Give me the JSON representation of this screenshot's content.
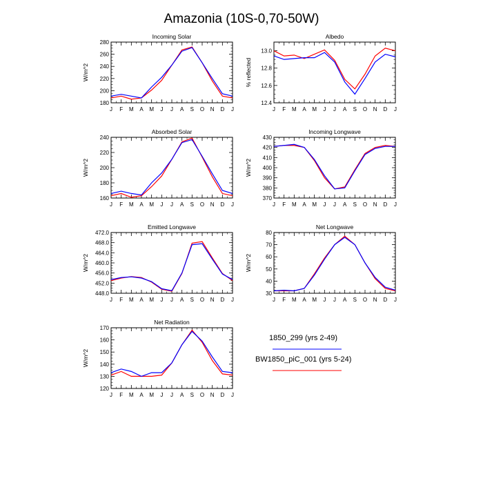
{
  "page": {
    "title": "Amazonia (10S-0,70-50W)"
  },
  "legend": {
    "entries": [
      {
        "name": "1850_299 (yrs 2-49)",
        "color": "#0000ff"
      },
      {
        "name": "BW1850_piC_001 (yrs 5-24)",
        "color": "#ff0000"
      }
    ]
  },
  "chart_data": [
    {
      "type": "line",
      "title": "Incoming Solar",
      "ylabel": "W/m^2",
      "categories": [
        "J",
        "F",
        "M",
        "A",
        "M",
        "J",
        "J",
        "A",
        "S",
        "O",
        "N",
        "D",
        "J"
      ],
      "ylim": [
        180,
        280
      ],
      "yticks": [
        180,
        200,
        220,
        240,
        260,
        280
      ],
      "ytick_labels": [
        "180",
        "200",
        "220",
        "240",
        "260",
        "280"
      ],
      "series": [
        {
          "name": "1850_299 (yrs 2-49)",
          "color": "#0000ff",
          "values": [
            191,
            194,
            191,
            188,
            206,
            222,
            242,
            265,
            271,
            246,
            220,
            195,
            191
          ]
        },
        {
          "name": "BW1850_piC_001 (yrs 5-24)",
          "color": "#ff0000",
          "values": [
            188,
            191,
            186,
            188,
            201,
            217,
            242,
            267,
            272,
            246,
            216,
            191,
            188
          ]
        }
      ]
    },
    {
      "type": "line",
      "title": "Albedo",
      "ylabel": "% reflected",
      "categories": [
        "J",
        "F",
        "M",
        "A",
        "M",
        "J",
        "J",
        "A",
        "S",
        "O",
        "N",
        "D",
        "J"
      ],
      "ylim": [
        12.4,
        13.1
      ],
      "yticks": [
        12.4,
        12.6,
        12.8,
        13.0
      ],
      "ytick_labels": [
        "12.4",
        "12.6",
        "12.8",
        "13.0"
      ],
      "series": [
        {
          "name": "1850_299 (yrs 2-49)",
          "color": "#0000ff",
          "values": [
            12.94,
            12.9,
            12.91,
            12.92,
            12.92,
            12.98,
            12.87,
            12.64,
            12.5,
            12.68,
            12.87,
            12.96,
            12.93
          ]
        },
        {
          "name": "BW1850_piC_001 (yrs 5-24)",
          "color": "#ff0000",
          "values": [
            13.0,
            12.94,
            12.95,
            12.91,
            12.96,
            13.01,
            12.89,
            12.67,
            12.56,
            12.73,
            12.94,
            13.03,
            13.0
          ]
        }
      ]
    },
    {
      "type": "line",
      "title": "Absorbed Solar",
      "ylabel": "W/m^2",
      "categories": [
        "J",
        "F",
        "M",
        "A",
        "M",
        "J",
        "J",
        "A",
        "S",
        "O",
        "N",
        "D",
        "J"
      ],
      "ylim": [
        160,
        240
      ],
      "yticks": [
        160,
        180,
        200,
        220,
        240
      ],
      "ytick_labels": [
        "160",
        "180",
        "200",
        "220",
        "240"
      ],
      "series": [
        {
          "name": "1850_299 (yrs 2-49)",
          "color": "#0000ff",
          "values": [
            166,
            169,
            166,
            164,
            180,
            193,
            211,
            233,
            237,
            215,
            192,
            170,
            166
          ]
        },
        {
          "name": "BW1850_piC_001 (yrs 5-24)",
          "color": "#ff0000",
          "values": [
            163,
            166,
            161,
            163,
            175,
            189,
            211,
            234,
            239,
            214,
            188,
            166,
            163
          ]
        }
      ]
    },
    {
      "type": "line",
      "title": "Incoming Longwave",
      "ylabel": "W/m^2",
      "categories": [
        "J",
        "F",
        "M",
        "A",
        "M",
        "J",
        "J",
        "A",
        "S",
        "O",
        "N",
        "D",
        "J"
      ],
      "ylim": [
        370,
        430
      ],
      "yticks": [
        370,
        380,
        390,
        400,
        410,
        420,
        430
      ],
      "ytick_labels": [
        "370",
        "380",
        "390",
        "400",
        "410",
        "420",
        "430"
      ],
      "series": [
        {
          "name": "1850_299 (yrs 2-49)",
          "color": "#0000ff",
          "values": [
            421,
            422,
            423,
            420,
            408,
            392,
            379,
            380,
            397,
            413,
            419,
            421,
            421
          ]
        },
        {
          "name": "BW1850_piC_001 (yrs 5-24)",
          "color": "#ff0000",
          "values": [
            421,
            422,
            422,
            420,
            407,
            390,
            379,
            381,
            398,
            414,
            420,
            422,
            421
          ]
        }
      ]
    },
    {
      "type": "line",
      "title": "Emitted Longwave",
      "ylabel": "W/m^2",
      "categories": [
        "J",
        "F",
        "M",
        "A",
        "M",
        "J",
        "J",
        "A",
        "S",
        "O",
        "N",
        "D",
        "J"
      ],
      "ylim": [
        448,
        472
      ],
      "yticks": [
        448,
        452,
        456,
        460,
        464,
        468,
        472
      ],
      "ytick_labels": [
        "448.0",
        "452.0",
        "456.0",
        "460.0",
        "464.0",
        "468.0",
        "472.0"
      ],
      "series": [
        {
          "name": "1850_299 (yrs 2-49)",
          "color": "#0000ff",
          "values": [
            453.4,
            454.2,
            454.5,
            454.0,
            452.6,
            449.8,
            449.0,
            456.0,
            467.2,
            467.6,
            461.5,
            455.6,
            453.4
          ]
        },
        {
          "name": "BW1850_piC_001 (yrs 5-24)",
          "color": "#ff0000",
          "values": [
            453.0,
            454.0,
            454.6,
            454.2,
            452.4,
            449.6,
            448.8,
            455.8,
            467.8,
            468.4,
            462.0,
            455.8,
            453.0
          ]
        }
      ]
    },
    {
      "type": "line",
      "title": "Net Longwave",
      "ylabel": "W/m^2",
      "categories": [
        "J",
        "F",
        "M",
        "A",
        "M",
        "J",
        "J",
        "A",
        "S",
        "O",
        "N",
        "D",
        "J"
      ],
      "ylim": [
        30,
        80
      ],
      "yticks": [
        30,
        40,
        50,
        60,
        70,
        80
      ],
      "ytick_labels": [
        "30",
        "40",
        "50",
        "60",
        "70",
        "80"
      ],
      "series": [
        {
          "name": "1850_299 (yrs 2-49)",
          "color": "#0000ff",
          "values": [
            32,
            32.5,
            32,
            34,
            45,
            58,
            70,
            76,
            70,
            55,
            43,
            35,
            32.5
          ]
        },
        {
          "name": "BW1850_piC_001 (yrs 5-24)",
          "color": "#ff0000",
          "values": [
            32,
            32,
            32,
            34,
            46,
            59,
            70,
            77,
            70,
            55,
            42,
            34,
            32
          ]
        }
      ]
    },
    {
      "type": "line",
      "title": "Net Radiation",
      "ylabel": "W/m^2",
      "categories": [
        "J",
        "F",
        "M",
        "A",
        "M",
        "J",
        "J",
        "A",
        "S",
        "O",
        "N",
        "D",
        "J"
      ],
      "ylim": [
        120,
        170
      ],
      "yticks": [
        120,
        130,
        140,
        150,
        160,
        170
      ],
      "ytick_labels": [
        "120",
        "130",
        "140",
        "150",
        "160",
        "170"
      ],
      "series": [
        {
          "name": "1850_299 (yrs 2-49)",
          "color": "#0000ff",
          "values": [
            133,
            136,
            134,
            130,
            133,
            133,
            141,
            156,
            167,
            159,
            146,
            134,
            133
          ]
        },
        {
          "name": "BW1850_piC_001 (yrs 5-24)",
          "color": "#ff0000",
          "values": [
            131,
            134,
            130,
            130,
            130,
            131,
            141,
            156,
            168,
            158,
            143,
            132,
            131
          ]
        }
      ]
    }
  ]
}
